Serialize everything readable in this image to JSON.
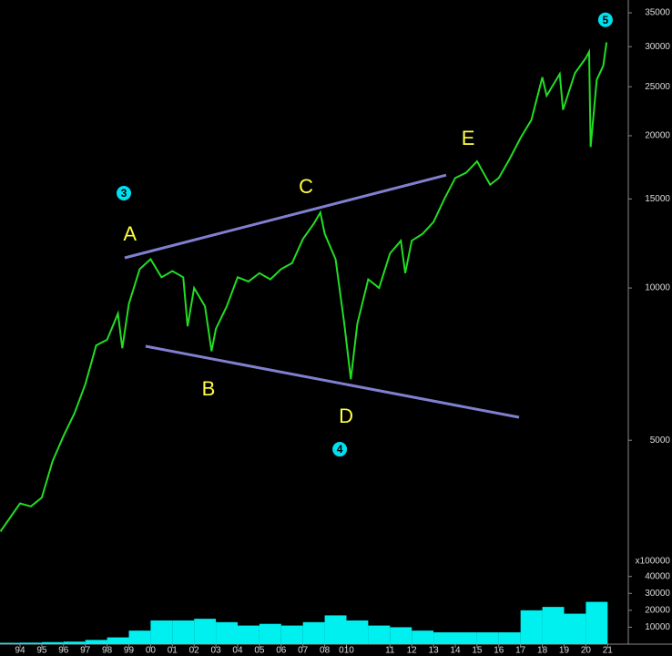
{
  "chart_data": [
    {
      "type": "line",
      "log_scale": true,
      "color": "#22dd22",
      "xlim": [
        1993.08,
        2021.95
      ],
      "ylim": [
        3080,
        37100
      ],
      "xticks": [
        {
          "value": 1994,
          "label": "94"
        },
        {
          "value": 1995,
          "label": "95"
        },
        {
          "value": 1996,
          "label": "96"
        },
        {
          "value": 1997,
          "label": "97"
        },
        {
          "value": 1998,
          "label": "98"
        },
        {
          "value": 1999,
          "label": "99"
        },
        {
          "value": 2000,
          "label": "00"
        },
        {
          "value": 2001,
          "label": "01"
        },
        {
          "value": 2002,
          "label": "02"
        },
        {
          "value": 2003,
          "label": "03"
        },
        {
          "value": 2004,
          "label": "04"
        },
        {
          "value": 2005,
          "label": "05"
        },
        {
          "value": 2006,
          "label": "06"
        },
        {
          "value": 2007,
          "label": "07"
        },
        {
          "value": 2008,
          "label": "08"
        },
        {
          "value": 2009,
          "label": "010"
        },
        {
          "value": 2011,
          "label": "11"
        },
        {
          "value": 2012,
          "label": "12"
        },
        {
          "value": 2013,
          "label": "13"
        },
        {
          "value": 2014,
          "label": "14"
        },
        {
          "value": 2015,
          "label": "15"
        },
        {
          "value": 2016,
          "label": "16"
        },
        {
          "value": 2017,
          "label": "17"
        },
        {
          "value": 2018,
          "label": "18"
        },
        {
          "value": 2019,
          "label": "19"
        },
        {
          "value": 2020,
          "label": "20"
        },
        {
          "value": 2021,
          "label": "21"
        }
      ],
      "yticks": [
        5000,
        10000,
        15000,
        20000,
        25000,
        30000,
        35000
      ],
      "x": [
        1993.1,
        1994.0,
        1994.5,
        1995.0,
        1995.5,
        1996.0,
        1996.5,
        1997.0,
        1997.5,
        1998.0,
        1998.5,
        1998.7,
        1999.0,
        1999.5,
        2000.0,
        2000.5,
        2001.0,
        2001.5,
        2001.7,
        2002.0,
        2002.5,
        2002.8,
        2003.0,
        2003.5,
        2004.0,
        2004.5,
        2005.0,
        2005.5,
        2006.0,
        2006.5,
        2007.0,
        2007.5,
        2007.8,
        2008.0,
        2008.5,
        2008.9,
        2009.2,
        2009.5,
        2010.0,
        2010.5,
        2011.0,
        2011.5,
        2011.7,
        2012.0,
        2012.5,
        2013.0,
        2013.5,
        2014.0,
        2014.5,
        2015.0,
        2015.6,
        2016.0,
        2016.5,
        2017.0,
        2017.5,
        2018.0,
        2018.2,
        2018.8,
        2018.95,
        2019.5,
        2020.0,
        2020.15,
        2020.22,
        2020.5,
        2020.8,
        2020.95
      ],
      "values": [
        3300,
        3750,
        3700,
        3850,
        4550,
        5100,
        5650,
        6450,
        7700,
        7900,
        8900,
        7600,
        9300,
        10900,
        11400,
        10500,
        10800,
        10500,
        8400,
        10000,
        9200,
        7500,
        8300,
        9200,
        10500,
        10300,
        10700,
        10400,
        10900,
        11200,
        12500,
        13400,
        14100,
        12800,
        11400,
        8500,
        6600,
        8500,
        10400,
        10000,
        11700,
        12400,
        10700,
        12400,
        12800,
        13500,
        15000,
        16500,
        16900,
        17800,
        16000,
        16500,
        18000,
        19800,
        21500,
        26100,
        24000,
        26500,
        22500,
        26600,
        28500,
        29300,
        19000,
        25800,
        27500,
        30600
      ],
      "trendlines": [
        {
          "x": [
            1998.81,
            2013.58
          ],
          "y": [
            11470,
            16720
          ],
          "color": "#8080d0"
        },
        {
          "x": [
            1999.77,
            2016.93
          ],
          "y": [
            7670,
            5550
          ],
          "color": "#8080d0"
        }
      ],
      "annotations": [
        {
          "text": "A",
          "x": 1999.05,
          "y": 12720
        },
        {
          "text": "B",
          "x": 2002.66,
          "y": 6280
        },
        {
          "text": "C",
          "x": 2007.14,
          "y": 15780
        },
        {
          "text": "D",
          "x": 2008.98,
          "y": 5550
        },
        {
          "text": "E",
          "x": 2014.59,
          "y": 19660
        }
      ],
      "wave_marks": [
        {
          "text": "3",
          "x": 1998.77,
          "y": 15400
        },
        {
          "text": "4",
          "x": 2008.69,
          "y": 4800
        },
        {
          "text": "5",
          "x": 2020.9,
          "y": 33900
        }
      ]
    },
    {
      "type": "bar",
      "color": "#00f0f0",
      "y_label": "x100000",
      "xlim": [
        1993.08,
        2021.95
      ],
      "ylim": [
        0,
        42000
      ],
      "yticks": [
        10000,
        20000,
        30000,
        40000
      ],
      "x": [
        1993.5,
        1994.5,
        1995.5,
        1996.5,
        1997.5,
        1998.5,
        1999.5,
        2000.5,
        2001.5,
        2002.5,
        2003.5,
        2004.5,
        2005.5,
        2006.5,
        2007.5,
        2008.5,
        2009.5,
        2010.5,
        2011.5,
        2012.5,
        2013.5,
        2014.5,
        2015.5,
        2016.5,
        2017.5,
        2018.5,
        2019.5,
        2020.5
      ],
      "values": [
        800,
        900,
        1200,
        1500,
        2500,
        4000,
        8000,
        14000,
        14000,
        15000,
        13000,
        11000,
        12000,
        11000,
        13000,
        17000,
        14000,
        11000,
        10000,
        8000,
        7000,
        7000,
        7000,
        7000,
        20000,
        22000,
        18000,
        25000
      ]
    }
  ]
}
